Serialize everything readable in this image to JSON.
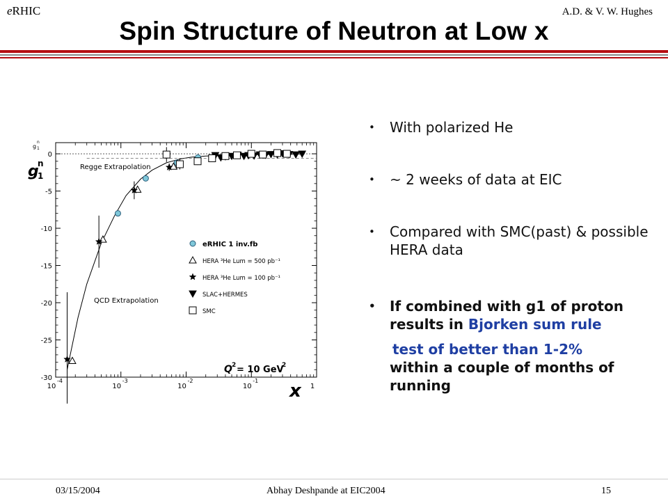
{
  "header": {
    "prefix": "e",
    "app": "RHIC",
    "authors": "A.D. & V. W. Hughes"
  },
  "title": "Spin Structure of Neutron at Low x",
  "bullets": {
    "b1": "With polarized He",
    "b2": "~ 2 weeks of data at EIC",
    "b3": "Compared with SMC(past) & possible HERA data",
    "b4_line": "If combined with g1 of proton results in ",
    "b4_blue": "Bjorken sum rule",
    "b4_blue2": "test of better than 1-2%",
    "b4_tail": "within a couple of months of running"
  },
  "footer": {
    "date": "03/15/2004",
    "presenter": "Abhay Deshpande at EIC2004",
    "page": "15"
  },
  "chart_data": {
    "type": "scatter",
    "xscale": "log",
    "xlim": [
      0.0001,
      1
    ],
    "ylim": [
      -30,
      1.5
    ],
    "ylabel": "g1n",
    "xlabel": "x",
    "xticks": [
      {
        "label": "10",
        "exp": "-4"
      },
      {
        "label": "10",
        "exp": "-3"
      },
      {
        "label": "10",
        "exp": "-2"
      },
      {
        "label": "10",
        "exp": "-1"
      },
      {
        "label": "1",
        "exp": ""
      }
    ],
    "yticks": [
      "0",
      "-5",
      "-10",
      "-15",
      "-20",
      "-25",
      "-30"
    ],
    "annotations": {
      "regge": "Regge Extrapolation",
      "qcd": "QCD Extrapolation",
      "q2_lhs": "Q",
      "q2_rhs": "= 10 GeV"
    },
    "legend": [
      {
        "marker": "circle",
        "label": "eRHIC 1 inv.fb",
        "color": "#7fc7d9"
      },
      {
        "marker": "triangle-up",
        "label": "HERA ³He Lum = 500 pb⁻¹"
      },
      {
        "marker": "star",
        "label": "HERA ³He Lum = 100 pb⁻¹"
      },
      {
        "marker": "triangle-down",
        "label": "SLAC+HERMES"
      },
      {
        "marker": "square",
        "label": "SMC"
      }
    ],
    "curve": {
      "x": [
        0.00015,
        0.00022,
        0.0003,
        0.0005,
        0.0008,
        0.0012,
        0.002,
        0.003,
        0.005,
        0.008,
        0.012,
        0.02,
        0.04,
        0.08,
        0.15,
        0.3,
        0.6
      ],
      "y": [
        -29,
        -22,
        -17.5,
        -12,
        -8.3,
        -5.6,
        -3.4,
        -2.2,
        -1.2,
        -0.7,
        -0.45,
        -0.3,
        -0.2,
        -0.14,
        -0.1,
        -0.05,
        -0.02
      ]
    },
    "series": [
      {
        "name": "eRHIC 1 inv.fb",
        "marker": "circle",
        "x": [
          0.0009,
          0.0024,
          0.0072,
          0.0152
        ],
        "y": [
          -8.0,
          -3.3,
          -1.2,
          -0.5
        ]
      },
      {
        "name": "HERA ³He Lum = 500 pb⁻¹",
        "marker": "triangle-up",
        "x": [
          0.00018,
          0.00053,
          0.0018,
          0.0064
        ],
        "y": [
          -27.8,
          -11.5,
          -4.8,
          -1.7
        ]
      },
      {
        "name": "HERA ³He Lum = 100 pb⁻¹",
        "marker": "star",
        "x": [
          0.00015,
          0.00046,
          0.0016,
          0.0055
        ],
        "y": [
          -27.6,
          -11.8,
          -4.9,
          -1.8
        ],
        "yerr": [
          9,
          3.5,
          1.2,
          0.5
        ]
      },
      {
        "name": "SLAC+HERMES",
        "marker": "triangle-down",
        "x": [
          0.028,
          0.034,
          0.04,
          0.05,
          0.062,
          0.077,
          0.09,
          0.11,
          0.135,
          0.165,
          0.2,
          0.25,
          0.3,
          0.38,
          0.48,
          0.6
        ],
        "y": [
          -0.2,
          -0.5,
          -0.35,
          -0.3,
          -0.15,
          -0.3,
          -0.2,
          -0.25,
          -0.1,
          -0.15,
          -0.05,
          -0.1,
          0.05,
          -0.05,
          -0.1,
          0.0
        ]
      },
      {
        "name": "SMC",
        "marker": "square",
        "x": [
          0.005,
          0.008,
          0.015,
          0.025,
          0.04,
          0.06,
          0.1,
          0.15,
          0.25,
          0.35
        ],
        "y": [
          -0.1,
          -1.4,
          -1.0,
          -0.6,
          -0.3,
          -0.2,
          0.0,
          -0.1,
          0.1,
          0.0
        ],
        "yerr": [
          1.0,
          0.7,
          0.5,
          0.4,
          0.3,
          0.3,
          0.3,
          0.3,
          0.3,
          0.3
        ]
      }
    ]
  }
}
